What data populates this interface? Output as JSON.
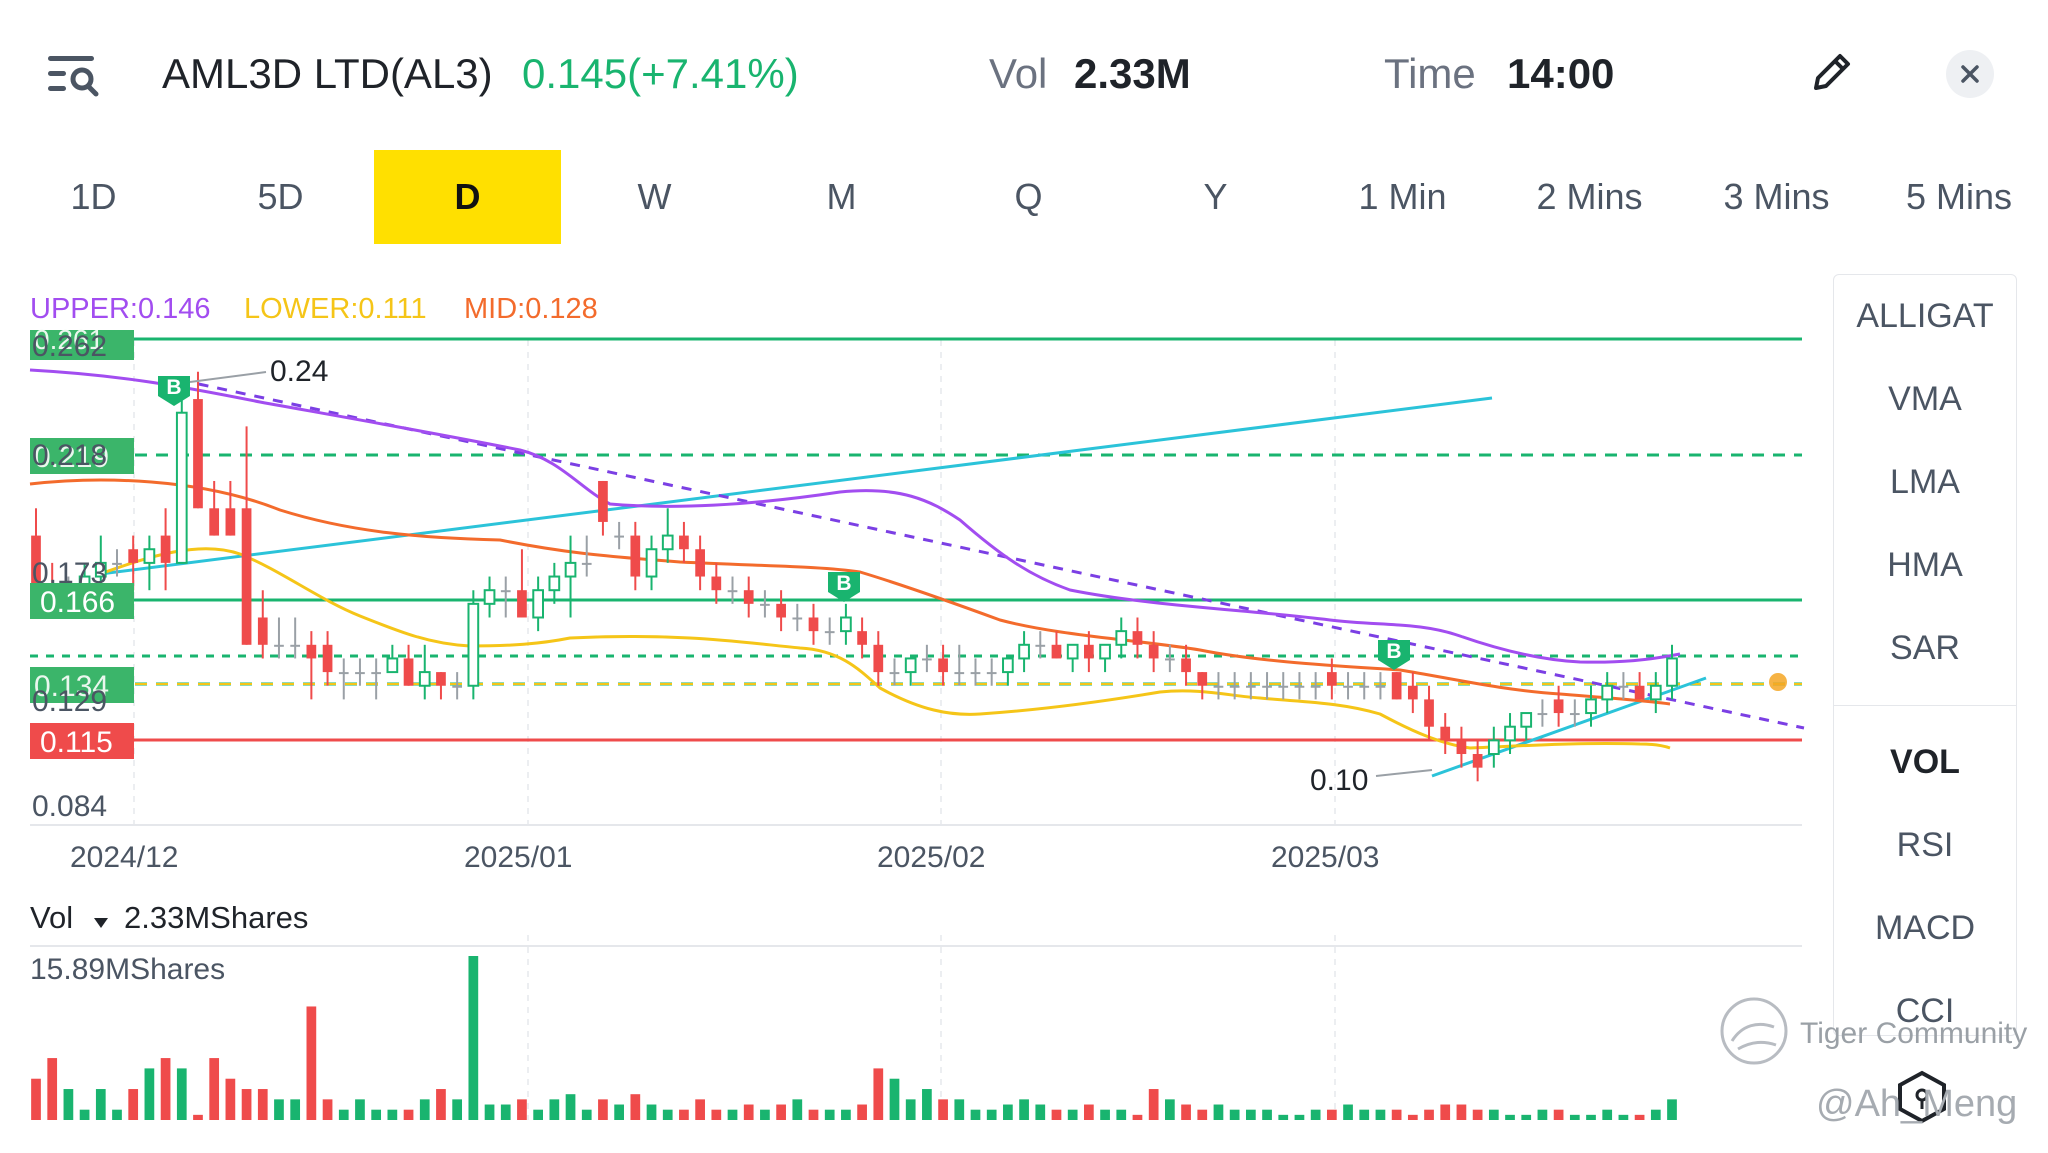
{
  "header": {
    "title": "AML3D LTD(AL3)",
    "price": "0.145(+7.41%)",
    "vol_label": "Vol",
    "vol_value": "2.33M",
    "time_label": "Time",
    "time_value": "14:00"
  },
  "icons": {
    "menu": "search-list-icon",
    "edit": "pencil-icon",
    "close": "close-icon"
  },
  "tabs": [
    {
      "label": "1D"
    },
    {
      "label": "5D"
    },
    {
      "label": "D",
      "active": true
    },
    {
      "label": "W"
    },
    {
      "label": "M"
    },
    {
      "label": "Q"
    },
    {
      "label": "Y"
    },
    {
      "label": "1 Min"
    },
    {
      "label": "2 Mins"
    },
    {
      "label": "3 Mins"
    },
    {
      "label": "5 Mins"
    }
  ],
  "legend": {
    "upper": "UPPER:0.146",
    "lower": "LOWER:0.111",
    "mid": "MID:0.128"
  },
  "colors": {
    "up": "#19b46f",
    "down": "#ef4b4b",
    "upper_band": "#a24df0",
    "lower_band": "#f5c518",
    "mid_band": "#f36b2c",
    "trendline": "#2bc3d9",
    "tab_active": "#ffe000"
  },
  "price_labels": {
    "p0262": "0.262",
    "p0261": "0.261",
    "p024": "0.24",
    "p0218": "0.218",
    "p0219": "0.219",
    "p0173": "0.173",
    "p0166": "0.166",
    "p0134": "0.134",
    "p0129": "0.129",
    "p0115": "0.115",
    "p010": "0.10",
    "p0084": "0.084"
  },
  "buy_marker": "B",
  "x_labels": [
    "2024/12",
    "2025/01",
    "2025/02",
    "2025/03"
  ],
  "volume": {
    "label": "Vol",
    "value": "2.33MShares",
    "max_label": "15.89MShares"
  },
  "sidebar": {
    "top": [
      "ALLIGAT",
      "VMA",
      "LMA",
      "HMA",
      "SAR"
    ],
    "bottom": [
      "VOL",
      "RSI",
      "MACD",
      "CCI"
    ]
  },
  "watermark": {
    "community": "Tiger Community",
    "user": "@Ah_Meng"
  },
  "chart_data": {
    "type": "candlestick",
    "ylim": [
      0.084,
      0.262
    ],
    "bands": {
      "upper": 0.146,
      "lower": 0.111,
      "mid": 0.128
    },
    "levels": [
      0.261,
      0.219,
      0.166,
      0.134,
      0.115
    ],
    "candles": [
      [
        0.19,
        0.2,
        0.17,
        0.17
      ],
      [
        0.17,
        0.18,
        0.16,
        0.165
      ],
      [
        0.165,
        0.175,
        0.16,
        0.165
      ],
      [
        0.17,
        0.18,
        0.165,
        0.175
      ],
      [
        0.175,
        0.19,
        0.17,
        0.18
      ],
      [
        0.18,
        0.185,
        0.175,
        0.18
      ],
      [
        0.185,
        0.19,
        0.17,
        0.18
      ],
      [
        0.18,
        0.19,
        0.17,
        0.185
      ],
      [
        0.19,
        0.2,
        0.17,
        0.18
      ],
      [
        0.18,
        0.24,
        0.18,
        0.235
      ],
      [
        0.24,
        0.25,
        0.2,
        0.2
      ],
      [
        0.2,
        0.21,
        0.19,
        0.19
      ],
      [
        0.2,
        0.21,
        0.19,
        0.19
      ],
      [
        0.2,
        0.23,
        0.15,
        0.15
      ],
      [
        0.16,
        0.17,
        0.145,
        0.15
      ],
      [
        0.15,
        0.16,
        0.145,
        0.15
      ],
      [
        0.15,
        0.16,
        0.145,
        0.15
      ],
      [
        0.15,
        0.155,
        0.13,
        0.145
      ],
      [
        0.15,
        0.155,
        0.135,
        0.14
      ],
      [
        0.14,
        0.145,
        0.13,
        0.14
      ],
      [
        0.14,
        0.145,
        0.135,
        0.14
      ],
      [
        0.14,
        0.145,
        0.13,
        0.14
      ],
      [
        0.14,
        0.15,
        0.14,
        0.145
      ],
      [
        0.145,
        0.15,
        0.135,
        0.135
      ],
      [
        0.135,
        0.15,
        0.13,
        0.14
      ],
      [
        0.14,
        0.14,
        0.13,
        0.135
      ],
      [
        0.135,
        0.14,
        0.13,
        0.135
      ],
      [
        0.135,
        0.17,
        0.13,
        0.165
      ],
      [
        0.165,
        0.175,
        0.16,
        0.17
      ],
      [
        0.17,
        0.175,
        0.16,
        0.17
      ],
      [
        0.17,
        0.185,
        0.16,
        0.16
      ],
      [
        0.16,
        0.175,
        0.155,
        0.17
      ],
      [
        0.17,
        0.18,
        0.165,
        0.175
      ],
      [
        0.175,
        0.19,
        0.16,
        0.18
      ],
      [
        0.18,
        0.19,
        0.175,
        0.18
      ],
      [
        0.21,
        0.21,
        0.19,
        0.195
      ],
      [
        0.19,
        0.195,
        0.185,
        0.19
      ],
      [
        0.19,
        0.195,
        0.17,
        0.175
      ],
      [
        0.175,
        0.19,
        0.17,
        0.185
      ],
      [
        0.185,
        0.2,
        0.18,
        0.19
      ],
      [
        0.19,
        0.195,
        0.18,
        0.185
      ],
      [
        0.185,
        0.19,
        0.17,
        0.175
      ],
      [
        0.175,
        0.18,
        0.165,
        0.17
      ],
      [
        0.17,
        0.175,
        0.165,
        0.17
      ],
      [
        0.17,
        0.175,
        0.16,
        0.165
      ],
      [
        0.165,
        0.17,
        0.16,
        0.165
      ],
      [
        0.165,
        0.17,
        0.155,
        0.16
      ],
      [
        0.16,
        0.165,
        0.155,
        0.16
      ],
      [
        0.16,
        0.165,
        0.15,
        0.155
      ],
      [
        0.155,
        0.16,
        0.15,
        0.155
      ],
      [
        0.155,
        0.165,
        0.15,
        0.16
      ],
      [
        0.155,
        0.16,
        0.145,
        0.15
      ],
      [
        0.15,
        0.155,
        0.135,
        0.14
      ],
      [
        0.14,
        0.145,
        0.135,
        0.14
      ],
      [
        0.14,
        0.145,
        0.135,
        0.145
      ],
      [
        0.145,
        0.15,
        0.14,
        0.145
      ],
      [
        0.145,
        0.15,
        0.135,
        0.14
      ],
      [
        0.14,
        0.15,
        0.135,
        0.14
      ],
      [
        0.14,
        0.145,
        0.135,
        0.14
      ],
      [
        0.14,
        0.145,
        0.135,
        0.14
      ],
      [
        0.14,
        0.145,
        0.135,
        0.145
      ],
      [
        0.145,
        0.155,
        0.14,
        0.15
      ],
      [
        0.15,
        0.155,
        0.145,
        0.15
      ],
      [
        0.15,
        0.155,
        0.145,
        0.145
      ],
      [
        0.145,
        0.15,
        0.14,
        0.15
      ],
      [
        0.15,
        0.155,
        0.14,
        0.145
      ],
      [
        0.145,
        0.15,
        0.14,
        0.15
      ],
      [
        0.15,
        0.16,
        0.145,
        0.155
      ],
      [
        0.155,
        0.16,
        0.145,
        0.15
      ],
      [
        0.15,
        0.155,
        0.14,
        0.145
      ],
      [
        0.145,
        0.15,
        0.14,
        0.145
      ],
      [
        0.145,
        0.15,
        0.135,
        0.14
      ],
      [
        0.14,
        0.14,
        0.13,
        0.135
      ],
      [
        0.135,
        0.14,
        0.13,
        0.135
      ],
      [
        0.135,
        0.14,
        0.13,
        0.135
      ],
      [
        0.135,
        0.14,
        0.13,
        0.135
      ],
      [
        0.135,
        0.14,
        0.13,
        0.135
      ],
      [
        0.135,
        0.14,
        0.13,
        0.135
      ],
      [
        0.135,
        0.14,
        0.13,
        0.135
      ],
      [
        0.135,
        0.14,
        0.13,
        0.135
      ],
      [
        0.14,
        0.145,
        0.13,
        0.135
      ],
      [
        0.135,
        0.14,
        0.13,
        0.135
      ],
      [
        0.135,
        0.14,
        0.13,
        0.135
      ],
      [
        0.135,
        0.14,
        0.13,
        0.135
      ],
      [
        0.14,
        0.14,
        0.13,
        0.13
      ],
      [
        0.135,
        0.14,
        0.125,
        0.13
      ],
      [
        0.13,
        0.135,
        0.115,
        0.12
      ],
      [
        0.12,
        0.125,
        0.11,
        0.115
      ],
      [
        0.115,
        0.12,
        0.105,
        0.11
      ],
      [
        0.11,
        0.115,
        0.1,
        0.105
      ],
      [
        0.11,
        0.12,
        0.105,
        0.115
      ],
      [
        0.115,
        0.125,
        0.11,
        0.12
      ],
      [
        0.12,
        0.125,
        0.115,
        0.125
      ],
      [
        0.125,
        0.13,
        0.12,
        0.125
      ],
      [
        0.13,
        0.135,
        0.12,
        0.125
      ],
      [
        0.125,
        0.13,
        0.12,
        0.125
      ],
      [
        0.125,
        0.135,
        0.12,
        0.13
      ],
      [
        0.13,
        0.14,
        0.125,
        0.135
      ],
      [
        0.135,
        0.14,
        0.13,
        0.135
      ],
      [
        0.135,
        0.14,
        0.13,
        0.13
      ],
      [
        0.13,
        0.14,
        0.125,
        0.135
      ],
      [
        0.135,
        0.15,
        0.13,
        0.145
      ]
    ],
    "volume": [
      4,
      6,
      3,
      1,
      3,
      1,
      3,
      5,
      6,
      5,
      0.5,
      6,
      4,
      3,
      3,
      2,
      2,
      11,
      2,
      1,
      2,
      1,
      1,
      1,
      2,
      3,
      2,
      15.89,
      1.5,
      1.5,
      2,
      1,
      2,
      2.5,
      1,
      2,
      1.5,
      2.5,
      1.5,
      1,
      1,
      2,
      1,
      1,
      1.5,
      1,
      1.5,
      2,
      1,
      1,
      1,
      1.5,
      5,
      4,
      2,
      3,
      2,
      2,
      1,
      1,
      1.5,
      2,
      1.5,
      1,
      1,
      1.5,
      1,
      1,
      0.5,
      3,
      2,
      1.5,
      1,
      1.5,
      1,
      1,
      1,
      0.5,
      0.5,
      1,
      1,
      1.5,
      1,
      1,
      1,
      0.5,
      1,
      1.5,
      1.5,
      1,
      1,
      0.5,
      0.5,
      1,
      1,
      0.5,
      0.5,
      1,
      0.5,
      0.5,
      1,
      2
    ]
  }
}
